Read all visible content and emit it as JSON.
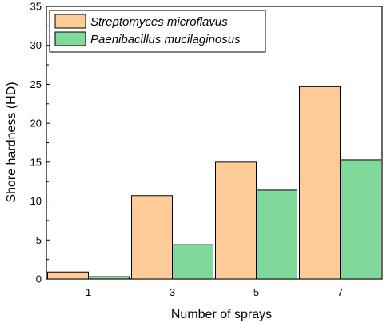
{
  "chart_data": {
    "type": "bar",
    "title": "",
    "xlabel": "Number of sprays",
    "ylabel": "Shore hardness (HD)",
    "categories": [
      "1",
      "3",
      "5",
      "7"
    ],
    "ylim": [
      0,
      35
    ],
    "yticks": [
      0,
      5,
      10,
      15,
      20,
      25,
      30,
      35
    ],
    "grid": false,
    "legend_position": "top-left",
    "series": [
      {
        "name": "Streptomyces microflavus",
        "values": [
          0.9,
          10.7,
          15.0,
          24.7
        ],
        "color": "#FFCC99"
      },
      {
        "name": "Paenibacillus mucilaginosus",
        "values": [
          0.3,
          4.4,
          11.4,
          15.3
        ],
        "color": "#80D89A"
      }
    ]
  }
}
